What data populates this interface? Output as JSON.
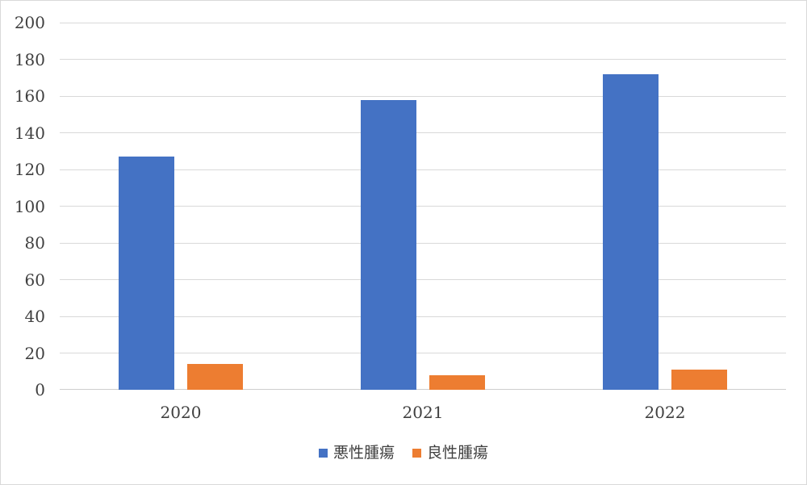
{
  "chart_data": {
    "type": "bar",
    "title": "",
    "categories": [
      "2020",
      "2021",
      "2022"
    ],
    "series": [
      {
        "name": "悪性腫瘍",
        "color": "#4472C4",
        "values": [
          127,
          158,
          172
        ]
      },
      {
        "name": "良性腫瘍",
        "color": "#ED7D31",
        "values": [
          14,
          8,
          11
        ]
      }
    ],
    "ylim": [
      0,
      200
    ],
    "yticks": [
      0,
      20,
      40,
      60,
      80,
      100,
      120,
      140,
      160,
      180,
      200
    ],
    "grid": true,
    "legend_position": "bottom",
    "colors": {
      "gridline": "#d9d9d9",
      "axis_line": "#cfcfcf",
      "text": "#404040",
      "chart_border": "#d9d9d9",
      "background": "#ffffff"
    }
  }
}
